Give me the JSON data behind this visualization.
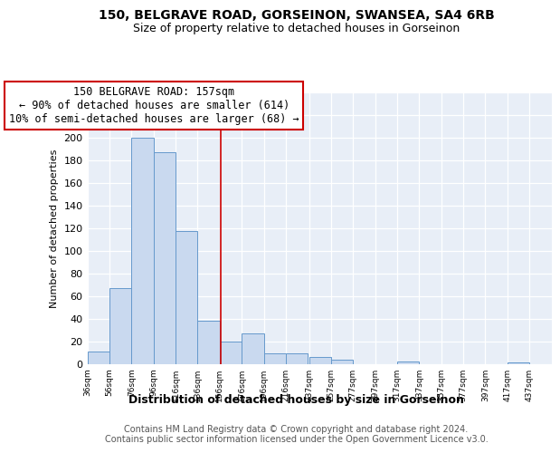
{
  "title": "150, BELGRAVE ROAD, GORSEINON, SWANSEA, SA4 6RB",
  "subtitle": "Size of property relative to detached houses in Gorseinon",
  "xlabel": "Distribution of detached houses by size in Gorseinon",
  "ylabel": "Number of detached properties",
  "bins_left": [
    36,
    56,
    76,
    96,
    116,
    136,
    156,
    176,
    196,
    216,
    237,
    257,
    277,
    297,
    317,
    337,
    357,
    377,
    397,
    417
  ],
  "bin_width": 20,
  "counts": [
    11,
    67,
    200,
    187,
    117,
    38,
    20,
    27,
    9,
    9,
    6,
    4,
    0,
    0,
    2,
    0,
    0,
    0,
    0,
    1
  ],
  "bar_color": "#c9d9ef",
  "bar_edge_color": "#6699cc",
  "vline_x": 157,
  "vline_color": "#cc0000",
  "annotation_line1": "150 BELGRAVE ROAD: 157sqm",
  "annotation_line2": "← 90% of detached houses are smaller (614)",
  "annotation_line3": "10% of semi-detached houses are larger (68) →",
  "annotation_box_edge": "#cc0000",
  "annotation_fontsize": 8.5,
  "ylim": [
    0,
    240
  ],
  "yticks": [
    0,
    20,
    40,
    60,
    80,
    100,
    120,
    140,
    160,
    180,
    200,
    220,
    240
  ],
  "tick_labels": [
    "36sqm",
    "56sqm",
    "76sqm",
    "96sqm",
    "116sqm",
    "136sqm",
    "156sqm",
    "176sqm",
    "196sqm",
    "216sqm",
    "237sqm",
    "257sqm",
    "277sqm",
    "297sqm",
    "317sqm",
    "337sqm",
    "357sqm",
    "377sqm",
    "397sqm",
    "417sqm",
    "437sqm"
  ],
  "background_color": "#e8eef7",
  "grid_color": "#d0d8e8",
  "footer_text": "Contains HM Land Registry data © Crown copyright and database right 2024.\nContains public sector information licensed under the Open Government Licence v3.0.",
  "title_fontsize": 10,
  "subtitle_fontsize": 9,
  "xlabel_fontsize": 9,
  "ylabel_fontsize": 8,
  "footer_fontsize": 7
}
